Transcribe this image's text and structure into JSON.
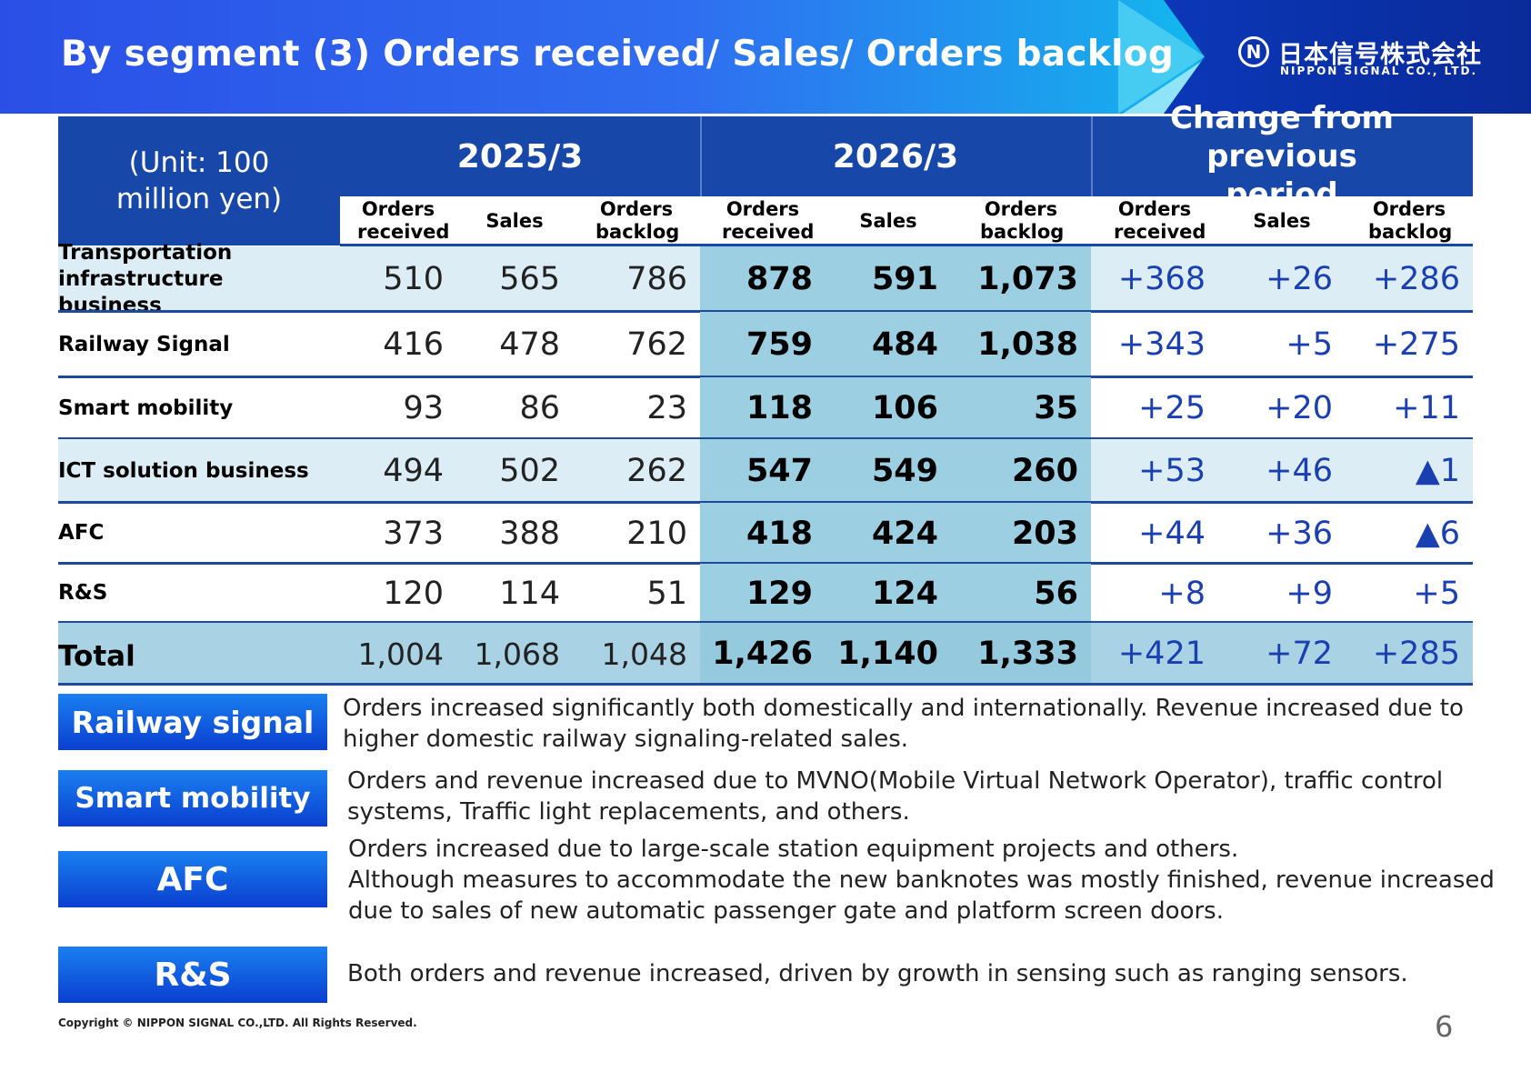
{
  "header": {
    "title": "By segment (3) Orders received/ Sales/ Orders backlog",
    "logo_jp": "日本信号株式会社",
    "logo_en": "NIPPON SIGNAL CO., LTD.",
    "logo_mark": "N"
  },
  "table": {
    "unit": "(Unit: 100 million yen)",
    "groups": [
      "2025/3",
      "2026/3",
      "Change from previous period"
    ],
    "subheaders": [
      "Orders received",
      "Sales",
      "Orders backlog",
      "Orders received",
      "Sales",
      "Orders backlog",
      "Orders received",
      "Sales",
      "Orders backlog"
    ],
    "rows": [
      {
        "label": "Transportation infrastructure business",
        "values": [
          "510",
          "565",
          "786",
          "878",
          "591",
          "1,073",
          "+368",
          "+26",
          "+286"
        ]
      },
      {
        "label": "Railway Signal",
        "values": [
          "416",
          "478",
          "762",
          "759",
          "484",
          "1,038",
          "+343",
          "+5",
          "+275"
        ]
      },
      {
        "label": "Smart mobility",
        "values": [
          "93",
          "86",
          "23",
          "118",
          "106",
          "35",
          "+25",
          "+20",
          "+11"
        ]
      },
      {
        "label": "ICT solution business",
        "values": [
          "494",
          "502",
          "262",
          "547",
          "549",
          "260",
          "+53",
          "+46",
          "▲1"
        ]
      },
      {
        "label": "AFC",
        "values": [
          "373",
          "388",
          "210",
          "418",
          "424",
          "203",
          "+44",
          "+36",
          "▲6"
        ]
      },
      {
        "label": "R&S",
        "values": [
          "120",
          "114",
          "51",
          "129",
          "124",
          "56",
          "+8",
          "+9",
          "+5"
        ]
      },
      {
        "label": "Total",
        "values": [
          "1,004",
          "1,068",
          "1,048",
          "1,426",
          "1,140",
          "1,333",
          "+421",
          "+72",
          "+285"
        ]
      }
    ]
  },
  "notes": [
    {
      "tag": "Railway signal",
      "lines": [
        "Orders increased significantly both domestically and internationally. Revenue increased due to",
        "higher domestic railway signaling-related sales."
      ]
    },
    {
      "tag": "Smart mobility",
      "lines": [
        "Orders and revenue increased due to MVNO(Mobile Virtual Network Operator), traffic control",
        "systems, Traffic light replacements, and others."
      ]
    },
    {
      "tag": "AFC",
      "lines": [
        "Orders increased due to large-scale station equipment projects and others.",
        "Although measures to accommodate the new banknotes was mostly finished, revenue increased",
        "due to sales of new automatic passenger gate and platform screen doors."
      ]
    },
    {
      "tag": "R&S",
      "lines": [
        "Both orders and revenue increased, driven by growth in sensing such as ranging sensors."
      ]
    }
  ],
  "footer": {
    "copyright": "Copyright © NIPPON SIGNAL CO.,LTD. All Rights Reserved.",
    "page": "6"
  },
  "colors": {
    "header_blue": "#1747a8",
    "row_light": "#dcedf5",
    "col_highlight": "#9dcfe2",
    "total_row": "#a9d3e4",
    "change_text": "#1a3fb0",
    "tag_blue": "#0a3fd0"
  }
}
